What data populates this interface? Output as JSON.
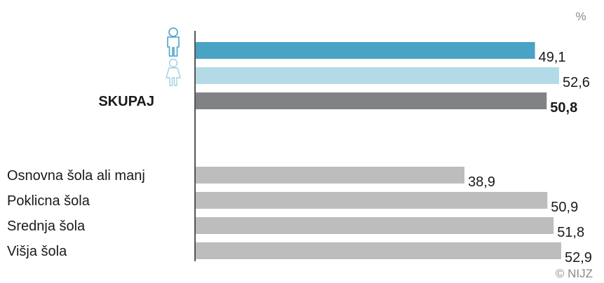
{
  "chart_data": {
    "type": "bar",
    "orientation": "horizontal",
    "unit": "%",
    "xlim": [
      0,
      55
    ],
    "grid": false,
    "categories": [
      {
        "label": "",
        "icon": "male-icon",
        "value": 49.1,
        "value_label": "49,1",
        "color": "#4aa3c4",
        "bold": false
      },
      {
        "label": "",
        "icon": "female-icon",
        "value": 52.6,
        "value_label": "52,6",
        "color": "#b3dbe7",
        "bold": false
      },
      {
        "label": "SKUPAJ",
        "icon": "",
        "value": 50.8,
        "value_label": "50,8",
        "color": "#808285",
        "bold": true
      },
      {
        "label": "Osnovna šola ali manj",
        "icon": "",
        "value": 38.9,
        "value_label": "38,9",
        "color": "#bdbdbd",
        "bold": false
      },
      {
        "label": "Poklicna šola",
        "icon": "",
        "value": 50.9,
        "value_label": "50,9",
        "color": "#bdbdbd",
        "bold": false
      },
      {
        "label": "Srednja šola",
        "icon": "",
        "value": 51.8,
        "value_label": "51,8",
        "color": "#bdbdbd",
        "bold": false
      },
      {
        "label": "Višja šola",
        "icon": "",
        "value": 52.9,
        "value_label": "52,9",
        "color": "#bdbdbd",
        "bold": false
      }
    ],
    "credit": "© NIJZ"
  },
  "colors": {
    "axis": "#555555",
    "icon": "#4aa3c4",
    "icon_light": "#9fcfe0"
  }
}
